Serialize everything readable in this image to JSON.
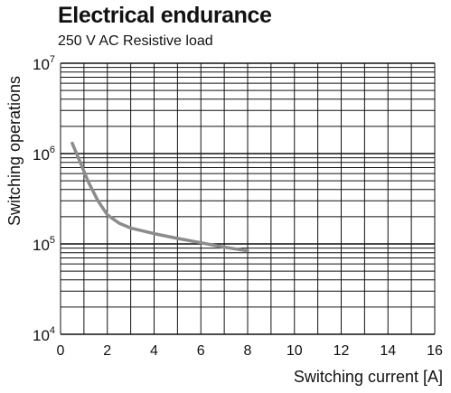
{
  "chart_data": {
    "type": "line",
    "title": "Electrical endurance",
    "subtitle": "250 V AC Resistive load",
    "xlabel": "Switching current [A]",
    "ylabel": "Switching operations",
    "xlim": [
      0,
      16
    ],
    "ylim": [
      10000,
      10000000
    ],
    "yscale": "log",
    "grid": true,
    "x_ticks": [
      "0",
      "2",
      "4",
      "6",
      "8",
      "10",
      "12",
      "14",
      "16"
    ],
    "y_ticks": [
      {
        "base": "10",
        "exp": "4"
      },
      {
        "base": "10",
        "exp": "5"
      },
      {
        "base": "10",
        "exp": "6"
      },
      {
        "base": "10",
        "exp": "7"
      }
    ],
    "series": [
      {
        "color": "#8c8c8c",
        "x": [
          0.5,
          0.8,
          1.2,
          1.6,
          2.0,
          2.5,
          3.0,
          4.0,
          5.0,
          6.0,
          7.0,
          8.0
        ],
        "y": [
          1300000,
          850000,
          480000,
          300000,
          210000,
          170000,
          150000,
          130000,
          115000,
          103000,
          92000,
          84000
        ]
      }
    ]
  }
}
